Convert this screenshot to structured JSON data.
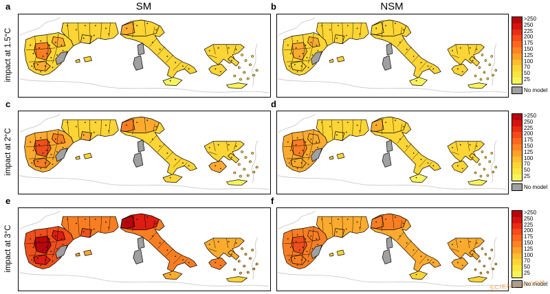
{
  "figure": {
    "columns": [
      "SM",
      "NSM"
    ],
    "rows": [
      "impact at 1.5°C",
      "impact at 2°C",
      "impact at 3°C"
    ],
    "panel_letters": [
      "a",
      "b",
      "c",
      "d",
      "e",
      "f"
    ],
    "watermark": "SCIENCEX.COM"
  },
  "colorbar": {
    "labels": [
      ">250",
      "250",
      "225",
      "200",
      "175",
      "150",
      "125",
      "100",
      "70",
      "50",
      "25"
    ],
    "colors": [
      "#b8070c",
      "#d31410",
      "#e92d15",
      "#f64a1a",
      "#fb671f",
      "#fd8424",
      "#fea129",
      "#febe2f",
      "#fdd535",
      "#fae63f",
      "#f7f35c"
    ],
    "no_model_label": "No model",
    "no_model_color": "#a0a0a0"
  },
  "chart_data": {
    "type": "heatmap",
    "layout": "3x2 grid of choropleth maps of the Mediterranean (Iberia, southern France, Italy, Greece)",
    "columns": [
      "SM",
      "NSM"
    ],
    "rows": [
      "impact at 1.5°C",
      "impact at 2°C",
      "impact at 3°C"
    ],
    "scale_ticks": [
      ">250",
      "250",
      "225",
      "200",
      "175",
      "150",
      "125",
      "100",
      "70",
      "50",
      "25"
    ],
    "no_data_label": "No model",
    "no_data_regions": [
      "Corsica",
      "Sardinia",
      "southeast Spain coast"
    ],
    "pattern": "map colors shift from yellow at 1.5°C to orange at 2°C to red at 3°C; SM panels darker than NSM panels"
  },
  "panels": [
    {
      "letter": "a",
      "column": "SM",
      "row": "impact at 1.5°C",
      "fills": {
        "iberia": "#fdd535",
        "iberia_hot_central": "#f97e22",
        "iberia_hot_ne": "#fcab2e",
        "iberia_hot_south": "#fcab2e",
        "france": "#fdd535",
        "france_hot": "#fdd535",
        "italy": "#fdd535",
        "italy_north": "#fdd535",
        "italy_hot": "#fcab2e",
        "sicily": "#f7f35c",
        "balearic_major": "#fdd535",
        "balearic_minor": "#fdd535",
        "greece": "#fdd535",
        "euboea": "#fdd535",
        "peloponnese": "#fdd535",
        "crete": "#f7f35c"
      }
    },
    {
      "letter": "b",
      "column": "NSM",
      "row": "impact at 1.5°C",
      "fills": {
        "iberia": "#fdd535",
        "iberia_hot_central": "#fcab2e",
        "iberia_hot_ne": "#fcab2e",
        "iberia_hot_south": "#fdd535",
        "france": "#fdd535",
        "france_hot": "#fdd535",
        "italy": "#fdd535",
        "italy_north": "#fdd535",
        "italy_hot": "#fdd535",
        "sicily": "#f7f35c",
        "balearic_major": "#fdd535",
        "balearic_minor": "#fdd535",
        "greece": "#fdd535",
        "euboea": "#fdd535",
        "peloponnese": "#fdd535",
        "crete": "#f7f35c"
      }
    },
    {
      "letter": "c",
      "column": "SM",
      "row": "impact at 2°C",
      "fills": {
        "iberia": "#fcab2e",
        "iberia_hot_central": "#ef4f1b",
        "iberia_hot_ne": "#f97e22",
        "iberia_hot_south": "#f97e22",
        "france": "#fdd535",
        "france_hot": "#fcab2e",
        "italy": "#fdd535",
        "italy_north": "#fcab2e",
        "italy_hot": "#f97e22",
        "sicily": "#fdd535",
        "balearic_major": "#fdd535",
        "balearic_minor": "#fdd535",
        "greece": "#fdd535",
        "euboea": "#fdd535",
        "peloponnese": "#fcab2e",
        "crete": "#f7f35c"
      }
    },
    {
      "letter": "d",
      "column": "NSM",
      "row": "impact at 2°C",
      "fills": {
        "iberia": "#fcab2e",
        "iberia_hot_central": "#f97e22",
        "iberia_hot_ne": "#fcab2e",
        "iberia_hot_south": "#fcab2e",
        "france": "#fdd535",
        "france_hot": "#fdd535",
        "italy": "#fdd535",
        "italy_north": "#fdd535",
        "italy_hot": "#fcab2e",
        "sicily": "#f7f35c",
        "balearic_major": "#fdd535",
        "balearic_minor": "#fdd535",
        "greece": "#fdd535",
        "euboea": "#fdd535",
        "peloponnese": "#fdd535",
        "crete": "#f7f35c"
      }
    },
    {
      "letter": "e",
      "column": "SM",
      "row": "impact at 3°C",
      "fills": {
        "iberia": "#ef4f1b",
        "iberia_hot_central": "#b8070c",
        "iberia_hot_ne": "#dd1c12",
        "iberia_hot_south": "#dd1c12",
        "france": "#f97e22",
        "france_hot": "#ef4f1b",
        "italy": "#f97e22",
        "italy_north": "#dd1c12",
        "italy_hot": "#b8070c",
        "sicily": "#fcab2e",
        "balearic_major": "#fcab2e",
        "balearic_minor": "#fcab2e",
        "greece": "#fcab2e",
        "euboea": "#fcab2e",
        "peloponnese": "#f97e22",
        "crete": "#fdd535"
      }
    },
    {
      "letter": "f",
      "column": "NSM",
      "row": "impact at 3°C",
      "fills": {
        "iberia": "#f97e22",
        "iberia_hot_central": "#ef4f1b",
        "iberia_hot_ne": "#f97e22",
        "iberia_hot_south": "#f97e22",
        "france": "#fcab2e",
        "france_hot": "#fcab2e",
        "italy": "#fcab2e",
        "italy_north": "#f97e22",
        "italy_hot": "#f97e22",
        "sicily": "#fdd535",
        "balearic_major": "#fdd535",
        "balearic_minor": "#fdd535",
        "greece": "#fcab2e",
        "euboea": "#fcab2e",
        "peloponnese": "#fcab2e",
        "crete": "#fdd535"
      }
    }
  ]
}
